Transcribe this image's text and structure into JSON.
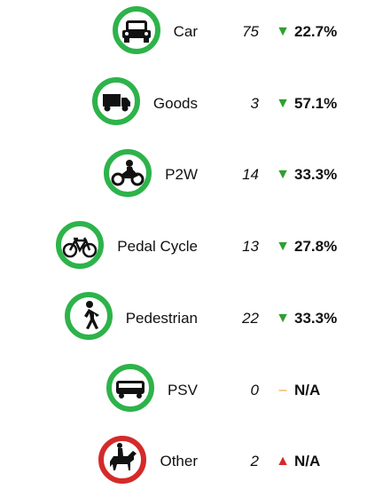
{
  "rows": [
    {
      "label": "Car",
      "count": "75",
      "indicator": "▼",
      "indicator_color": "#2ea02e",
      "change": "22.7%",
      "ring": "#2db34a"
    },
    {
      "label": "Goods",
      "count": "3",
      "indicator": "▼",
      "indicator_color": "#2ea02e",
      "change": "57.1%",
      "ring": "#2db34a"
    },
    {
      "label": "P2W",
      "count": "14",
      "indicator": "▼",
      "indicator_color": "#2ea02e",
      "change": "33.3%",
      "ring": "#2db34a"
    },
    {
      "label": "Pedal Cycle",
      "count": "13",
      "indicator": "▼",
      "indicator_color": "#2ea02e",
      "change": "27.8%",
      "ring": "#2db34a"
    },
    {
      "label": "Pedestrian",
      "count": "22",
      "indicator": "▼",
      "indicator_color": "#2ea02e",
      "change": "33.3%",
      "ring": "#2db34a"
    },
    {
      "label": "PSV",
      "count": "0",
      "indicator": "–",
      "indicator_color": "#f0a030",
      "change": "N/A",
      "ring": "#2db34a"
    },
    {
      "label": "Other",
      "count": "2",
      "indicator": "▲",
      "indicator_color": "#d42a2a",
      "change": "N/A",
      "ring": "#d42a2a"
    }
  ]
}
